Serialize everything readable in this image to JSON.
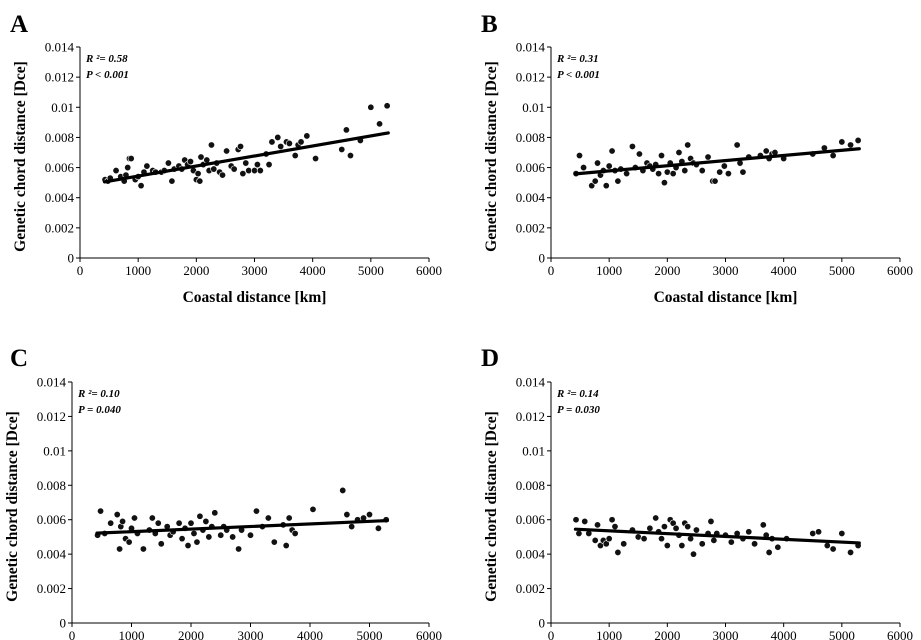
{
  "chart_data": [
    {
      "panel": "A",
      "type": "scatter",
      "xlabel": "Coastal distance [km]",
      "ylabel": "Genetic chord distance [Dce]",
      "xlim": [
        0,
        6000
      ],
      "ylim": [
        0,
        0.014
      ],
      "xticks": [
        0,
        1000,
        2000,
        3000,
        4000,
        5000,
        6000
      ],
      "yticks": [
        0,
        0.002,
        0.004,
        0.006,
        0.008,
        0.01,
        0.012,
        0.014
      ],
      "r2_label": "R ²= 0.58",
      "p_label": "P  < 0.001",
      "trendline": {
        "x": [
          420,
          5300
        ],
        "y": [
          0.00505,
          0.0083
        ]
      },
      "x": [
        430,
        480,
        520,
        620,
        700,
        760,
        790,
        820,
        850,
        880,
        950,
        1000,
        1050,
        1100,
        1150,
        1250,
        1300,
        1400,
        1450,
        1520,
        1580,
        1620,
        1700,
        1750,
        1800,
        1850,
        1900,
        1950,
        2000,
        2030,
        2060,
        2080,
        2120,
        2180,
        2220,
        2260,
        2300,
        2350,
        2400,
        2450,
        2520,
        2600,
        2650,
        2720,
        2760,
        2800,
        2850,
        2900,
        3000,
        3050,
        3100,
        3200,
        3250,
        3300,
        3400,
        3450,
        3550,
        3600,
        3700,
        3750,
        3800,
        3900,
        4050,
        4500,
        4580,
        4650,
        4820,
        5000,
        5150,
        5280
      ],
      "y": [
        0.0052,
        0.0051,
        0.0053,
        0.0058,
        0.0054,
        0.0051,
        0.0055,
        0.006,
        0.0066,
        0.0066,
        0.0052,
        0.0054,
        0.0048,
        0.0057,
        0.0061,
        0.0058,
        0.0057,
        0.0057,
        0.0058,
        0.0063,
        0.0051,
        0.0059,
        0.0061,
        0.0059,
        0.0065,
        0.0062,
        0.0064,
        0.0058,
        0.0052,
        0.0056,
        0.0051,
        0.0067,
        0.0062,
        0.0065,
        0.0058,
        0.0075,
        0.0059,
        0.0063,
        0.0057,
        0.0055,
        0.0071,
        0.0061,
        0.0059,
        0.0072,
        0.0074,
        0.0056,
        0.0063,
        0.0058,
        0.0058,
        0.0062,
        0.0058,
        0.0069,
        0.0062,
        0.0077,
        0.008,
        0.0074,
        0.0077,
        0.0076,
        0.0068,
        0.0075,
        0.0077,
        0.0081,
        0.0066,
        0.0072,
        0.0085,
        0.0068,
        0.0078,
        0.01,
        0.0089,
        0.0101
      ]
    },
    {
      "panel": "B",
      "type": "scatter",
      "xlabel": "Coastal distance [km]",
      "ylabel": "Genetic chord distance [Dce]",
      "xlim": [
        0,
        6000
      ],
      "ylim": [
        0,
        0.014
      ],
      "xticks": [
        0,
        1000,
        2000,
        3000,
        4000,
        5000,
        6000
      ],
      "yticks": [
        0,
        0.002,
        0.004,
        0.006,
        0.008,
        0.01,
        0.012,
        0.014
      ],
      "r2_label": "R ²= 0.31",
      "p_label": "P  < 0.001",
      "trendline": {
        "x": [
          420,
          5300
        ],
        "y": [
          0.00558,
          0.00725
        ]
      },
      "x": [
        430,
        490,
        560,
        700,
        760,
        800,
        850,
        900,
        950,
        1000,
        1050,
        1100,
        1150,
        1200,
        1300,
        1400,
        1450,
        1520,
        1580,
        1650,
        1700,
        1750,
        1800,
        1850,
        1900,
        1950,
        2000,
        2050,
        2100,
        2150,
        2200,
        2250,
        2300,
        2350,
        2400,
        2450,
        2500,
        2600,
        2700,
        2780,
        2820,
        2900,
        2980,
        3050,
        3200,
        3250,
        3300,
        3400,
        3600,
        3700,
        3750,
        3800,
        3850,
        4000,
        4500,
        4700,
        4850,
        5000,
        5150,
        5280
      ],
      "y": [
        0.0056,
        0.0068,
        0.006,
        0.0048,
        0.0051,
        0.0063,
        0.0055,
        0.0058,
        0.0048,
        0.0061,
        0.0071,
        0.0058,
        0.0051,
        0.0059,
        0.0056,
        0.0074,
        0.006,
        0.0069,
        0.0058,
        0.0063,
        0.0061,
        0.0059,
        0.0062,
        0.0056,
        0.0068,
        0.005,
        0.0057,
        0.0063,
        0.0056,
        0.006,
        0.007,
        0.0064,
        0.0058,
        0.0075,
        0.0066,
        0.0063,
        0.0062,
        0.0058,
        0.0067,
        0.0051,
        0.0051,
        0.0057,
        0.0061,
        0.0056,
        0.0075,
        0.0063,
        0.0057,
        0.0067,
        0.0068,
        0.0071,
        0.0066,
        0.0069,
        0.007,
        0.0066,
        0.0069,
        0.0073,
        0.0068,
        0.0077,
        0.0075,
        0.0078
      ]
    },
    {
      "panel": "C",
      "type": "scatter",
      "xlabel": "Coastal distance [km]",
      "ylabel": "Genetic chord distance [Dce]",
      "xlim": [
        0,
        6000
      ],
      "ylim": [
        0,
        0.014
      ],
      "xticks": [
        0,
        1000,
        2000,
        3000,
        4000,
        5000,
        6000
      ],
      "yticks": [
        0,
        0.002,
        0.004,
        0.006,
        0.008,
        0.01,
        0.012,
        0.014
      ],
      "r2_label": "R ²= 0.10",
      "p_label": "P  = 0.040",
      "trendline": {
        "x": [
          420,
          5300
        ],
        "y": [
          0.00522,
          0.00595
        ]
      },
      "x": [
        430,
        480,
        550,
        650,
        760,
        800,
        820,
        850,
        900,
        960,
        1000,
        1050,
        1100,
        1200,
        1300,
        1350,
        1400,
        1450,
        1500,
        1600,
        1650,
        1700,
        1800,
        1850,
        1900,
        1950,
        2000,
        2050,
        2100,
        2150,
        2200,
        2250,
        2300,
        2350,
        2400,
        2500,
        2550,
        2600,
        2700,
        2800,
        2850,
        3000,
        3100,
        3200,
        3300,
        3400,
        3550,
        3600,
        3650,
        3700,
        3750,
        4050,
        4550,
        4620,
        4700,
        4800,
        4900,
        5000,
        5150,
        5280
      ],
      "y": [
        0.0051,
        0.0065,
        0.0052,
        0.0058,
        0.0063,
        0.0043,
        0.0056,
        0.0059,
        0.0049,
        0.0047,
        0.0055,
        0.0061,
        0.0052,
        0.0043,
        0.0054,
        0.0061,
        0.0052,
        0.0058,
        0.0046,
        0.0056,
        0.0051,
        0.0053,
        0.0058,
        0.0049,
        0.0055,
        0.0045,
        0.0058,
        0.0052,
        0.0047,
        0.0062,
        0.0054,
        0.0059,
        0.005,
        0.0056,
        0.0064,
        0.0051,
        0.0056,
        0.0054,
        0.005,
        0.0043,
        0.0054,
        0.0051,
        0.0065,
        0.0056,
        0.0061,
        0.0047,
        0.0057,
        0.0045,
        0.0061,
        0.0054,
        0.0052,
        0.0066,
        0.0077,
        0.0063,
        0.0056,
        0.006,
        0.0061,
        0.0063,
        0.0055,
        0.006
      ]
    },
    {
      "panel": "D",
      "type": "scatter",
      "xlabel": "Coastal distance [km]",
      "ylabel": "Genetic chord distance [Dce]",
      "xlim": [
        0,
        6000
      ],
      "ylim": [
        0,
        0.014
      ],
      "xticks": [
        0,
        1000,
        2000,
        3000,
        4000,
        5000,
        6000
      ],
      "yticks": [
        0,
        0.002,
        0.004,
        0.006,
        0.008,
        0.01,
        0.012,
        0.014
      ],
      "r2_label": "R ²= 0.14",
      "p_label": "P  = 0.030",
      "trendline": {
        "x": [
          420,
          5300
        ],
        "y": [
          0.00545,
          0.00465
        ]
      },
      "x": [
        430,
        480,
        580,
        650,
        760,
        800,
        850,
        900,
        950,
        1000,
        1050,
        1100,
        1150,
        1250,
        1400,
        1500,
        1600,
        1700,
        1800,
        1850,
        1900,
        1950,
        2000,
        2050,
        2100,
        2150,
        2200,
        2250,
        2300,
        2350,
        2400,
        2450,
        2500,
        2600,
        2700,
        2750,
        2800,
        2850,
        3000,
        3100,
        3200,
        3300,
        3400,
        3500,
        3650,
        3700,
        3750,
        3800,
        3900,
        4050,
        4500,
        4600,
        4750,
        4850,
        5000,
        5150,
        5280
      ],
      "y": [
        0.006,
        0.0052,
        0.0059,
        0.0052,
        0.0048,
        0.0057,
        0.0045,
        0.0048,
        0.0046,
        0.0049,
        0.006,
        0.0056,
        0.0041,
        0.0046,
        0.0054,
        0.005,
        0.0049,
        0.0055,
        0.0061,
        0.0053,
        0.0049,
        0.0056,
        0.0045,
        0.006,
        0.0058,
        0.0055,
        0.0051,
        0.0045,
        0.0058,
        0.0056,
        0.0049,
        0.004,
        0.0054,
        0.0046,
        0.0052,
        0.0059,
        0.0048,
        0.0052,
        0.0051,
        0.0047,
        0.0052,
        0.0049,
        0.0053,
        0.0046,
        0.0057,
        0.0051,
        0.0041,
        0.0049,
        0.0044,
        0.0049,
        0.0052,
        0.0053,
        0.0045,
        0.0043,
        0.0052,
        0.0041,
        0.0045
      ]
    }
  ]
}
